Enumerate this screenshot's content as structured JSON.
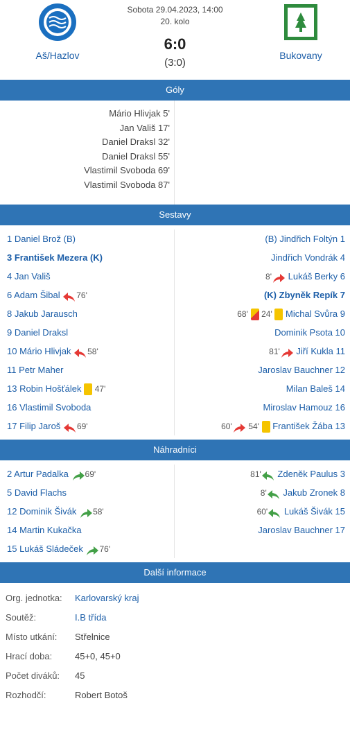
{
  "match": {
    "datetime": "Sobota 29.04.2023, 14:00",
    "round": "20. kolo",
    "score": "6:0",
    "halftime": "(3:0)",
    "home": {
      "name": "Aš/Hazlov",
      "logo_text": "TJ JISKRA AŠ FOTBAL"
    },
    "away": {
      "name": "Bukovany",
      "logo_text": "TJ BANÍK BUKOVANY"
    }
  },
  "sections": {
    "goals": "Góly",
    "lineups": "Sestavy",
    "subs": "Náhradníci",
    "info": "Další informace"
  },
  "goals": {
    "home": [
      "Mário Hlivjak 5'",
      "Jan Vališ 17'",
      "Daniel Draksl 32'",
      "Daniel Draksl 55'",
      "Vlastimil Svoboda 69'",
      "Vlastimil Svoboda 87'"
    ]
  },
  "lineups": {
    "home": [
      {
        "name": "1 Daniel Brož (B)"
      },
      {
        "name": "3 František Mezera (K)",
        "bold": true
      },
      {
        "name": "4 Jan Vališ"
      },
      {
        "name": "6 Adam Šibal",
        "sub_out": "76'"
      },
      {
        "name": "8 Jakub Jarausch"
      },
      {
        "name": "9 Daniel Draksl"
      },
      {
        "name": "10 Mário Hlivjak",
        "sub_out": "58'"
      },
      {
        "name": "11 Petr Maher"
      },
      {
        "name": "13 Robin Hošťálek",
        "yellow": "47'"
      },
      {
        "name": "16 Vlastimil Svoboda"
      },
      {
        "name": "17 Filip Jaroš",
        "sub_out": "69'"
      }
    ],
    "away": [
      {
        "name": "(B) Jindřich Foltýn 1"
      },
      {
        "name": "Jindřich Vondrák 4"
      },
      {
        "name": "Lukáš Berky 6",
        "sub_out": "8'"
      },
      {
        "name": "(K) Zbyněk Repík 7",
        "bold": true
      },
      {
        "name": "Michal Svůra 9",
        "second_yellow": "68'",
        "yellow": "24'"
      },
      {
        "name": "Dominik Psota 10"
      },
      {
        "name": "Jiří Kukla 11",
        "sub_out": "81'"
      },
      {
        "name": "Jaroslav Bauchner 12"
      },
      {
        "name": "Milan Baleš 14"
      },
      {
        "name": "Miroslav Hamouz 16"
      },
      {
        "name": "František Žába 13",
        "sub_out": "60'",
        "yellow": "54'"
      }
    ]
  },
  "subs": {
    "home": [
      {
        "name": "2 Artur Padalka",
        "sub_in": "69'"
      },
      {
        "name": "5 David Flachs"
      },
      {
        "name": "12 Dominik Šivák",
        "sub_in": "58'"
      },
      {
        "name": "14 Martin Kukačka"
      },
      {
        "name": "15 Lukáš Sládeček",
        "sub_in": "76'"
      }
    ],
    "away": [
      {
        "name": "Zdeněk Paulus 3",
        "sub_in": "81'"
      },
      {
        "name": "Jakub Zronek 8",
        "sub_in": "8'"
      },
      {
        "name": "Lukáš Šivák 15",
        "sub_in": "60'"
      },
      {
        "name": "Jaroslav Bauchner 17"
      }
    ]
  },
  "info": [
    {
      "label": "Org. jednotka:",
      "value": "Karlovarský kraj",
      "link": true
    },
    {
      "label": "Soutěž:",
      "value": "I.B třída",
      "link": true
    },
    {
      "label": "Místo utkání:",
      "value": "Střelnice"
    },
    {
      "label": "Hrací doba:",
      "value": "45+0, 45+0"
    },
    {
      "label": "Počet diváků:",
      "value": "45"
    },
    {
      "label": "Rozhodčí:",
      "value": "Robert Botoš"
    }
  ],
  "colors": {
    "accent": "#2f74b5",
    "link": "#1c5ea8",
    "sub_out": "#e53935",
    "sub_in": "#43a047",
    "yellow": "#f5c400"
  }
}
